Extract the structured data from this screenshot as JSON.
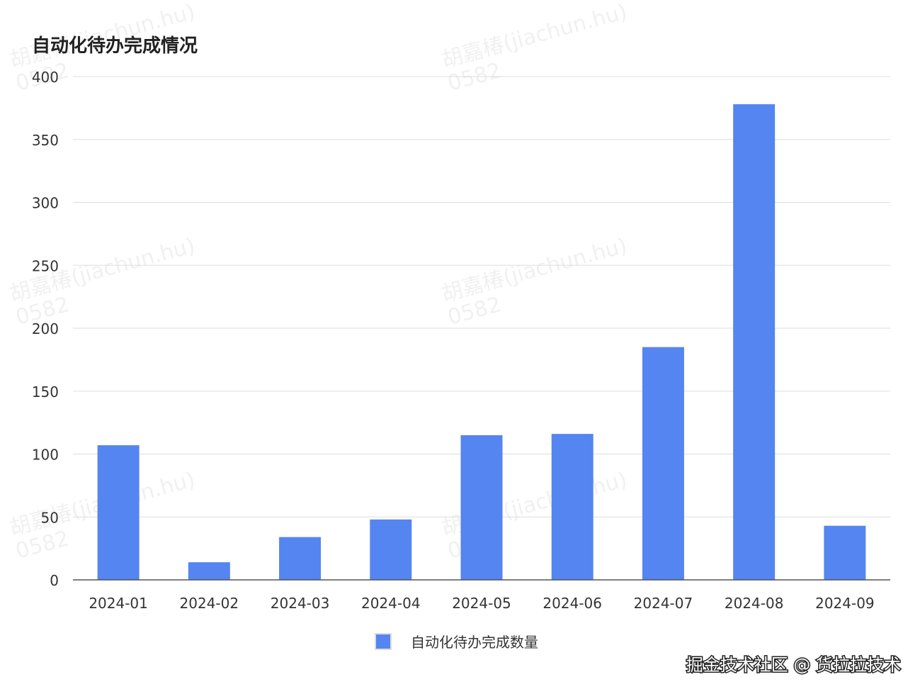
{
  "chart_data": {
    "type": "bar",
    "title": "自动化待办完成情况",
    "categories": [
      "2024-01",
      "2024-02",
      "2024-03",
      "2024-04",
      "2024-05",
      "2024-06",
      "2024-07",
      "2024-08",
      "2024-09"
    ],
    "series": [
      {
        "name": "自动化待办完成数量",
        "values": [
          107,
          14,
          34,
          48,
          115,
          116,
          185,
          378,
          43
        ],
        "color": "#5585f0"
      }
    ],
    "xlabel": "",
    "ylabel": "",
    "ylim": [
      0,
      400
    ],
    "yticks": [
      0,
      50,
      100,
      150,
      200,
      250,
      300,
      350,
      400
    ],
    "grid": true,
    "legend": "bottom-center"
  },
  "watermark": {
    "text_line1": "胡嘉椿(jiachun.hu)",
    "text_line2": "0582",
    "footer": "掘金技术社区 @ 货拉拉技术"
  },
  "colors": {
    "grid": "#dddddd",
    "axis": "#555555",
    "text": "#333333",
    "title": "#222222"
  }
}
